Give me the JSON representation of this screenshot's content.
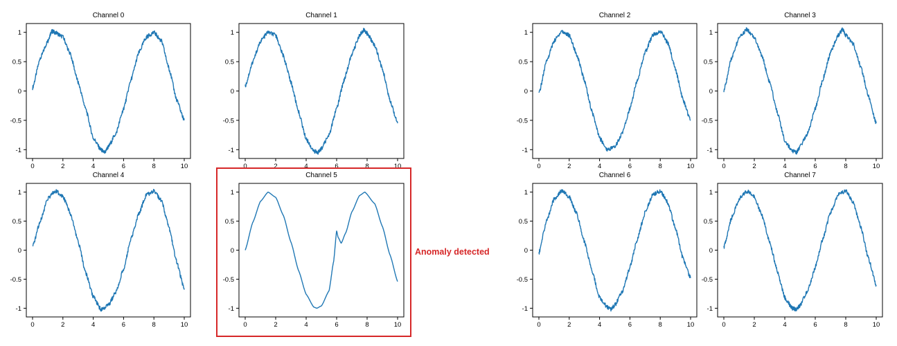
{
  "chart_data": {
    "type": "line",
    "layout": "small-multiples 2x4",
    "grid": false,
    "line_color": "#1f77b4",
    "highlight_color": "#d62728",
    "x_ticks": [
      "0",
      "2",
      "4",
      "6",
      "8",
      "10"
    ],
    "y_ticks": [
      "1",
      "0.5",
      "0",
      "-0.5",
      "-1"
    ],
    "xlim": [
      0,
      10
    ],
    "ylim": [
      -1.15,
      1.15
    ],
    "annotation": {
      "text": "Anomaly detected",
      "panel": "Channel 5"
    },
    "panels": [
      {
        "title": "Channel 0",
        "x": [
          0,
          0.5,
          1,
          1.25,
          1.5,
          2,
          2.5,
          3,
          3.5,
          4,
          4.5,
          4.75,
          5,
          5.5,
          6,
          6.5,
          7,
          7.5,
          8,
          8.5,
          9,
          9.5,
          10
        ],
        "values": [
          0.05,
          0.55,
          0.85,
          1.02,
          1.0,
          0.92,
          0.62,
          0.15,
          -0.3,
          -0.8,
          -1.0,
          -1.05,
          -0.95,
          -0.72,
          -0.3,
          0.2,
          0.65,
          0.92,
          1.0,
          0.85,
          0.38,
          -0.15,
          -0.5
        ]
      },
      {
        "title": "Channel 1",
        "x": [
          0,
          0.5,
          1,
          1.5,
          2,
          2.5,
          3,
          3.5,
          4,
          4.5,
          4.75,
          5,
          5.5,
          6,
          6.5,
          7,
          7.5,
          7.8,
          8,
          8.5,
          9,
          9.5,
          10
        ],
        "values": [
          0.08,
          0.5,
          0.85,
          1.0,
          0.95,
          0.6,
          0.15,
          -0.35,
          -0.82,
          -1.02,
          -1.05,
          -0.98,
          -0.75,
          -0.3,
          0.2,
          0.62,
          0.95,
          1.05,
          0.98,
          0.78,
          0.38,
          -0.15,
          -0.55
        ]
      },
      {
        "title": "Channel 2",
        "x": [
          0,
          0.5,
          1,
          1.5,
          2,
          2.5,
          3,
          3.5,
          4,
          4.5,
          5,
          5.5,
          6,
          6.5,
          7,
          7.5,
          8,
          8.5,
          9,
          9.5,
          10
        ],
        "values": [
          -0.05,
          0.5,
          0.85,
          1.02,
          0.95,
          0.62,
          0.18,
          -0.35,
          -0.8,
          -1.0,
          -0.95,
          -0.72,
          -0.3,
          0.2,
          0.65,
          0.95,
          1.02,
          0.82,
          0.38,
          -0.15,
          -0.5
        ]
      },
      {
        "title": "Channel 3",
        "x": [
          0,
          0.5,
          1,
          1.5,
          2,
          2.5,
          3,
          3.5,
          4,
          4.5,
          4.75,
          5,
          5.5,
          6,
          6.5,
          7,
          7.5,
          7.8,
          8,
          8.5,
          9,
          9.5,
          10
        ],
        "values": [
          0.0,
          0.55,
          0.9,
          1.05,
          0.92,
          0.6,
          0.15,
          -0.35,
          -0.85,
          -1.02,
          -1.05,
          -0.95,
          -0.72,
          -0.3,
          0.2,
          0.65,
          0.95,
          1.05,
          0.95,
          0.8,
          0.4,
          -0.1,
          -0.55
        ]
      },
      {
        "title": "Channel 4",
        "x": [
          0,
          0.5,
          1,
          1.5,
          2,
          2.5,
          3,
          3.5,
          4,
          4.5,
          5,
          5.5,
          6,
          6.5,
          7,
          7.5,
          8,
          8.5,
          9,
          9.5,
          10
        ],
        "values": [
          0.05,
          0.5,
          0.88,
          1.02,
          0.93,
          0.62,
          0.15,
          -0.38,
          -0.8,
          -1.02,
          -0.95,
          -0.72,
          -0.32,
          0.2,
          0.62,
          0.95,
          1.02,
          0.85,
          0.38,
          -0.2,
          -0.68
        ]
      },
      {
        "title": "Channel 5",
        "x": [
          0,
          0.5,
          1,
          1.5,
          2,
          2.5,
          3,
          3.5,
          4,
          4.5,
          4.7,
          5,
          5.5,
          5.8,
          6.0,
          6.1,
          6.3,
          6.6,
          7,
          7.5,
          7.85,
          8.5,
          9,
          9.5,
          10
        ],
        "values": [
          0.0,
          0.48,
          0.84,
          1.0,
          0.91,
          0.6,
          0.14,
          -0.35,
          -0.76,
          -0.98,
          -1.0,
          -0.96,
          -0.7,
          -0.2,
          0.33,
          0.22,
          0.12,
          0.3,
          0.66,
          0.94,
          1.0,
          0.8,
          0.41,
          -0.08,
          -0.54
        ]
      },
      {
        "title": "Channel 6",
        "x": [
          0,
          0.5,
          1,
          1.5,
          2,
          2.5,
          3,
          3.5,
          4,
          4.5,
          4.75,
          5,
          5.5,
          6,
          6.5,
          7,
          7.5,
          8,
          8.5,
          9,
          9.5,
          10
        ],
        "values": [
          -0.05,
          0.5,
          0.88,
          1.02,
          0.92,
          0.62,
          0.15,
          -0.35,
          -0.82,
          -0.98,
          -1.02,
          -0.95,
          -0.72,
          -0.3,
          0.2,
          0.65,
          0.95,
          1.02,
          0.82,
          0.38,
          -0.15,
          -0.48
        ]
      },
      {
        "title": "Channel 7",
        "x": [
          0,
          0.5,
          1,
          1.5,
          2,
          2.5,
          3,
          3.5,
          4,
          4.5,
          4.75,
          5,
          5.5,
          6,
          6.5,
          7,
          7.5,
          8,
          8.5,
          9,
          9.5,
          10
        ],
        "values": [
          0.05,
          0.55,
          0.88,
          1.02,
          0.92,
          0.6,
          0.15,
          -0.35,
          -0.82,
          -1.0,
          -1.02,
          -0.95,
          -0.7,
          -0.3,
          0.2,
          0.65,
          0.95,
          1.02,
          0.82,
          0.38,
          -0.15,
          -0.6
        ]
      }
    ]
  }
}
